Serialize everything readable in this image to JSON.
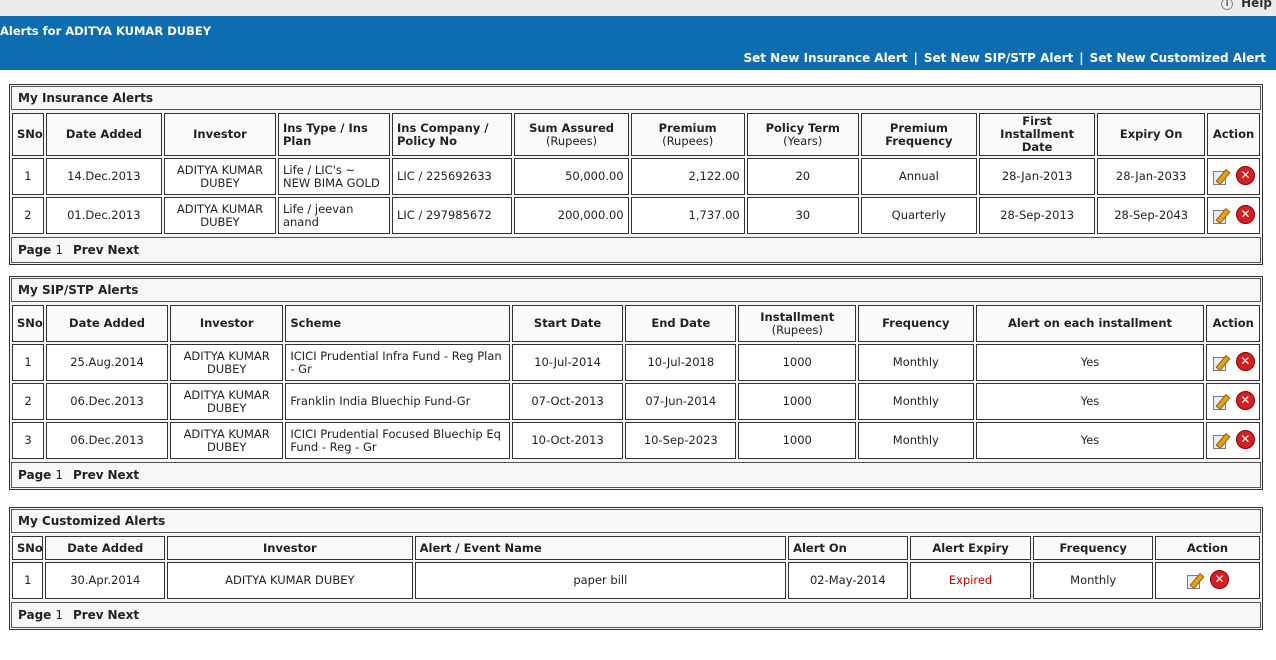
{
  "top": {
    "help_label": "Help"
  },
  "header": {
    "title": "Alerts for ADITYA KUMAR DUBEY",
    "links": [
      "Set New Insurance Alert",
      "Set New SIP/STP Alert",
      "Set New Customized Alert"
    ],
    "separator": "|"
  },
  "insurance": {
    "title": "My Insurance Alerts",
    "headers": [
      "SNo",
      "Date Added",
      "Investor",
      "Ins Type / Ins Plan",
      "Ins Company / Policy No",
      "Sum Assured",
      "Premium",
      "Policy Term",
      "Premium Frequency",
      "First Installment Date",
      "Expiry On",
      "Action"
    ],
    "subheaders": {
      "sum": "(Rupees)",
      "premium": "(Rupees)",
      "term": "(Years)"
    },
    "rows": [
      [
        "1",
        "14.Dec.2013",
        "ADITYA KUMAR DUBEY",
        "Life  / LIC's ~ NEW BIMA GOLD",
        "LIC / 225692633",
        "50,000.00",
        "2,122.00",
        "20",
        "Annual",
        "28-Jan-2013",
        "28-Jan-2033"
      ],
      [
        "2",
        "01.Dec.2013",
        "ADITYA KUMAR DUBEY",
        "Life  / jeevan anand",
        "LIC / 297985672",
        "200,000.00",
        "1,737.00",
        "30",
        "Quarterly",
        "28-Sep-2013",
        "28-Sep-2043"
      ]
    ]
  },
  "sip": {
    "title": "My SIP/STP Alerts",
    "headers": [
      "SNo",
      "Date Added",
      "Investor",
      "Scheme",
      "Start Date",
      "End Date",
      "Installment",
      "Frequency",
      "Alert on each installment",
      "Action"
    ],
    "subheaders": {
      "installment": "(Rupees)"
    },
    "rows": [
      [
        "1",
        "25.Aug.2014",
        "ADITYA KUMAR DUBEY",
        "ICICI Prudential Infra Fund - Reg Plan - Gr",
        "10-Jul-2014",
        "10-Jul-2018",
        "1000",
        "Monthly",
        "Yes"
      ],
      [
        "2",
        "06.Dec.2013",
        "ADITYA KUMAR DUBEY",
        "Franklin India Bluechip Fund-Gr",
        "07-Oct-2013",
        "07-Jun-2014",
        "1000",
        "Monthly",
        "Yes"
      ],
      [
        "3",
        "06.Dec.2013",
        "ADITYA KUMAR DUBEY",
        "ICICI Prudential Focused Bluechip Eq Fund - Reg - Gr",
        "10-Oct-2013",
        "10-Sep-2023",
        "1000",
        "Monthly",
        "Yes"
      ]
    ]
  },
  "custom": {
    "title": "My Customized Alerts",
    "headers": [
      "SNo",
      "Date Added",
      "Investor",
      "Alert / Event Name",
      "Alert On",
      "Alert Expiry",
      "Frequency",
      "Action"
    ],
    "rows": [
      [
        "1",
        "30.Apr.2014",
        "ADITYA KUMAR DUBEY",
        "paper bill",
        "02-May-2014",
        "Expired",
        "Monthly"
      ]
    ]
  },
  "pager": {
    "page_label": "Page",
    "page_num": "1",
    "prev": "Prev",
    "next": "Next"
  },
  "colors": {
    "header_bg": "#0e6cb0",
    "expired": "#d00000",
    "delete_icon": "#d42020"
  },
  "icons": {
    "edit": "edit-icon",
    "delete": "delete-icon",
    "help": "info-icon"
  }
}
